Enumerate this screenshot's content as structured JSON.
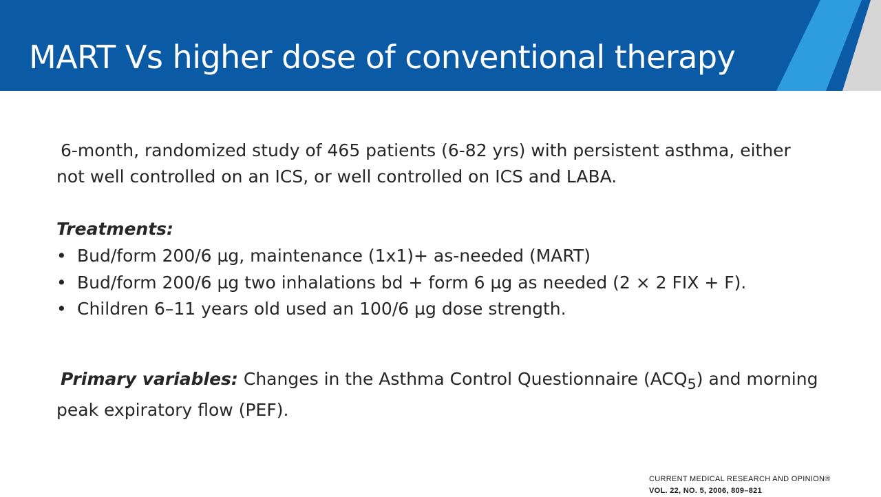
{
  "slide": {
    "title": "MART Vs higher dose of  conventional therapy",
    "intro": "6-month, randomized study of 465 patients (6-82 yrs) with persistent asthma, either not well controlled on an ICS, or well controlled on ICS and LABA.",
    "treatments_heading": "Treatments:",
    "bullet_symbol": "•",
    "treatments": [
      "Bud/form 200/6 µg, maintenance (1x1)+ as-needed (MART)",
      "Bud/form 200/6 µg two inhalations bd + form 6 µg as needed (2 × 2 FIX + F).",
      "Children 6–11 years old used an 100/6 µg dose strength."
    ],
    "primary": {
      "label": "Primary variables:",
      "text_before": " Changes in the Asthma Control Questionnaire (ACQ",
      "subscript": "5",
      "text_after": ") and morning peak expiratory flow (PEF)."
    },
    "citation": {
      "journal": "CURRENT MEDICAL RESEARCH AND OPINION®",
      "volume": "VOL. 22, NO. 5, 2006, 809–821"
    }
  },
  "colors": {
    "header_blue": "#0a5aa6",
    "accent_light_blue": "#2e9de0",
    "accent_gray": "#d6d6d6",
    "text": "#262626"
  }
}
